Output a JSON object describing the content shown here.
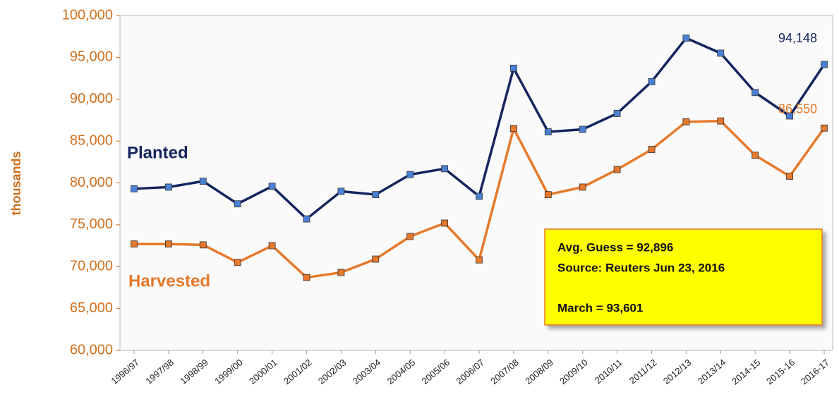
{
  "chart_data": {
    "type": "line",
    "y_label": "thousands",
    "categories": [
      "1996/97",
      "1997/98",
      "1998/99",
      "1999/00",
      "2000/01",
      "2001/02",
      "2002/03",
      "2003/04",
      "2004/05",
      "2005/06",
      "2006/07",
      "2007/08",
      "2008/09",
      "2009/10",
      "2010/11",
      "2011/12",
      "2012/13",
      "2013/14",
      "2014-15",
      "2015-16",
      "2016-17"
    ],
    "series": [
      {
        "name": "Planted",
        "color": "#14245e",
        "marker_color": "#4a80d4",
        "values": [
          79300,
          79500,
          80200,
          77500,
          79600,
          75700,
          79000,
          78600,
          81000,
          81700,
          78400,
          93700,
          86100,
          86400,
          88300,
          92100,
          97300,
          95500,
          90800,
          88000,
          94148
        ],
        "value_labels": [
          null,
          null,
          null,
          null,
          null,
          null,
          null,
          null,
          null,
          null,
          null,
          null,
          null,
          null,
          null,
          null,
          null,
          null,
          null,
          null,
          "94,148"
        ]
      },
      {
        "name": "Harvested",
        "color": "#e6792b",
        "marker_color": "#e6792b",
        "values": [
          72700,
          72700,
          72600,
          70500,
          72500,
          68700,
          69300,
          70900,
          73600,
          75200,
          70800,
          86500,
          78600,
          79500,
          81600,
          84000,
          87300,
          87400,
          83300,
          80800,
          86550
        ],
        "value_labels": [
          null,
          null,
          null,
          null,
          null,
          null,
          null,
          null,
          null,
          null,
          null,
          null,
          null,
          null,
          null,
          null,
          null,
          null,
          null,
          null,
          "86,550"
        ]
      }
    ],
    "ylim": [
      60000,
      100000
    ],
    "yticks": [
      {
        "value": 60000,
        "label": "60,000"
      },
      {
        "value": 65000,
        "label": "65,000"
      },
      {
        "value": 70000,
        "label": "70,000"
      },
      {
        "value": 75000,
        "label": "75,000"
      },
      {
        "value": 80000,
        "label": "80,000"
      },
      {
        "value": 85000,
        "label": "85,000"
      },
      {
        "value": 90000,
        "label": "90,000"
      },
      {
        "value": 95000,
        "label": "95,000"
      },
      {
        "value": 100000,
        "label": "100,000"
      }
    ],
    "annotation": [
      "Avg. Guess = 92,896",
      "Source: Reuters Jun 23, 2016",
      "March = 93,601"
    ]
  }
}
